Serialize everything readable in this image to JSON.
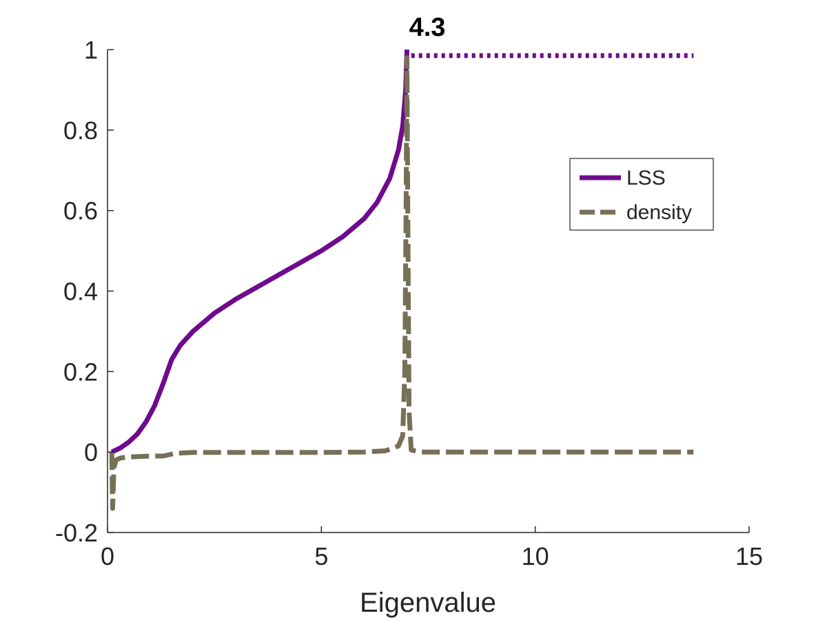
{
  "chart_data": {
    "type": "line",
    "title": "",
    "xlabel": "Eigenvalue",
    "ylabel": "",
    "xlim": [
      0,
      15
    ],
    "ylim": [
      -0.2,
      1
    ],
    "xticks": [
      0,
      5,
      10,
      15
    ],
    "xtick_labels": [
      "0",
      "5",
      "10",
      "15"
    ],
    "yticks": [
      -0.2,
      0,
      0.2,
      0.4,
      0.6,
      0.8,
      1
    ],
    "ytick_labels": [
      "-0.2",
      "0",
      "0.2",
      "0.4",
      "0.6",
      "0.8",
      "1"
    ],
    "grid": false,
    "legend_position": "upper-right",
    "annotation": {
      "text": "4.3",
      "x": 7.0,
      "y": 1.0
    },
    "series": [
      {
        "name": "LSS",
        "color": "#6f0a8e",
        "style": "solid",
        "in_legend": true,
        "x": [
          0.1,
          0.3,
          0.5,
          0.7,
          0.9,
          1.1,
          1.3,
          1.5,
          1.7,
          2.0,
          2.5,
          3.0,
          3.5,
          4.0,
          4.5,
          5.0,
          5.5,
          6.0,
          6.3,
          6.6,
          6.8,
          6.9,
          6.97,
          7.0
        ],
        "values": [
          0.0,
          0.01,
          0.025,
          0.045,
          0.075,
          0.115,
          0.17,
          0.23,
          0.265,
          0.3,
          0.345,
          0.38,
          0.41,
          0.44,
          0.47,
          0.5,
          0.535,
          0.58,
          0.62,
          0.68,
          0.75,
          0.81,
          0.9,
          1.0
        ]
      },
      {
        "name": "LSS (continued)",
        "color": "#6f0a8e",
        "style": "dotted",
        "in_legend": false,
        "x": [
          7.1,
          13.7
        ],
        "values": [
          0.985,
          0.985
        ]
      },
      {
        "name": "density",
        "color": "#767057",
        "style": "dashed",
        "in_legend": true,
        "x": [
          0.1,
          0.12,
          0.15,
          0.2,
          0.3,
          0.5,
          1.0,
          1.3,
          1.6,
          2.0,
          3.0,
          4.0,
          5.0,
          6.0,
          6.5,
          6.8,
          6.9,
          6.95,
          6.98,
          7.0,
          7.02,
          7.05,
          7.1,
          7.3,
          8.0,
          9.0,
          10.0,
          11.0,
          12.0,
          13.0,
          13.7
        ],
        "values": [
          0.0,
          -0.14,
          -0.04,
          -0.02,
          -0.015,
          -0.012,
          -0.01,
          -0.01,
          -0.003,
          -0.001,
          -0.001,
          -0.001,
          -0.001,
          0.0,
          0.003,
          0.015,
          0.04,
          0.2,
          0.6,
          0.98,
          0.6,
          0.1,
          0.005,
          0.0,
          0.0,
          0.0,
          0.0,
          0.0,
          0.0,
          0.0,
          0.0
        ]
      }
    ]
  }
}
